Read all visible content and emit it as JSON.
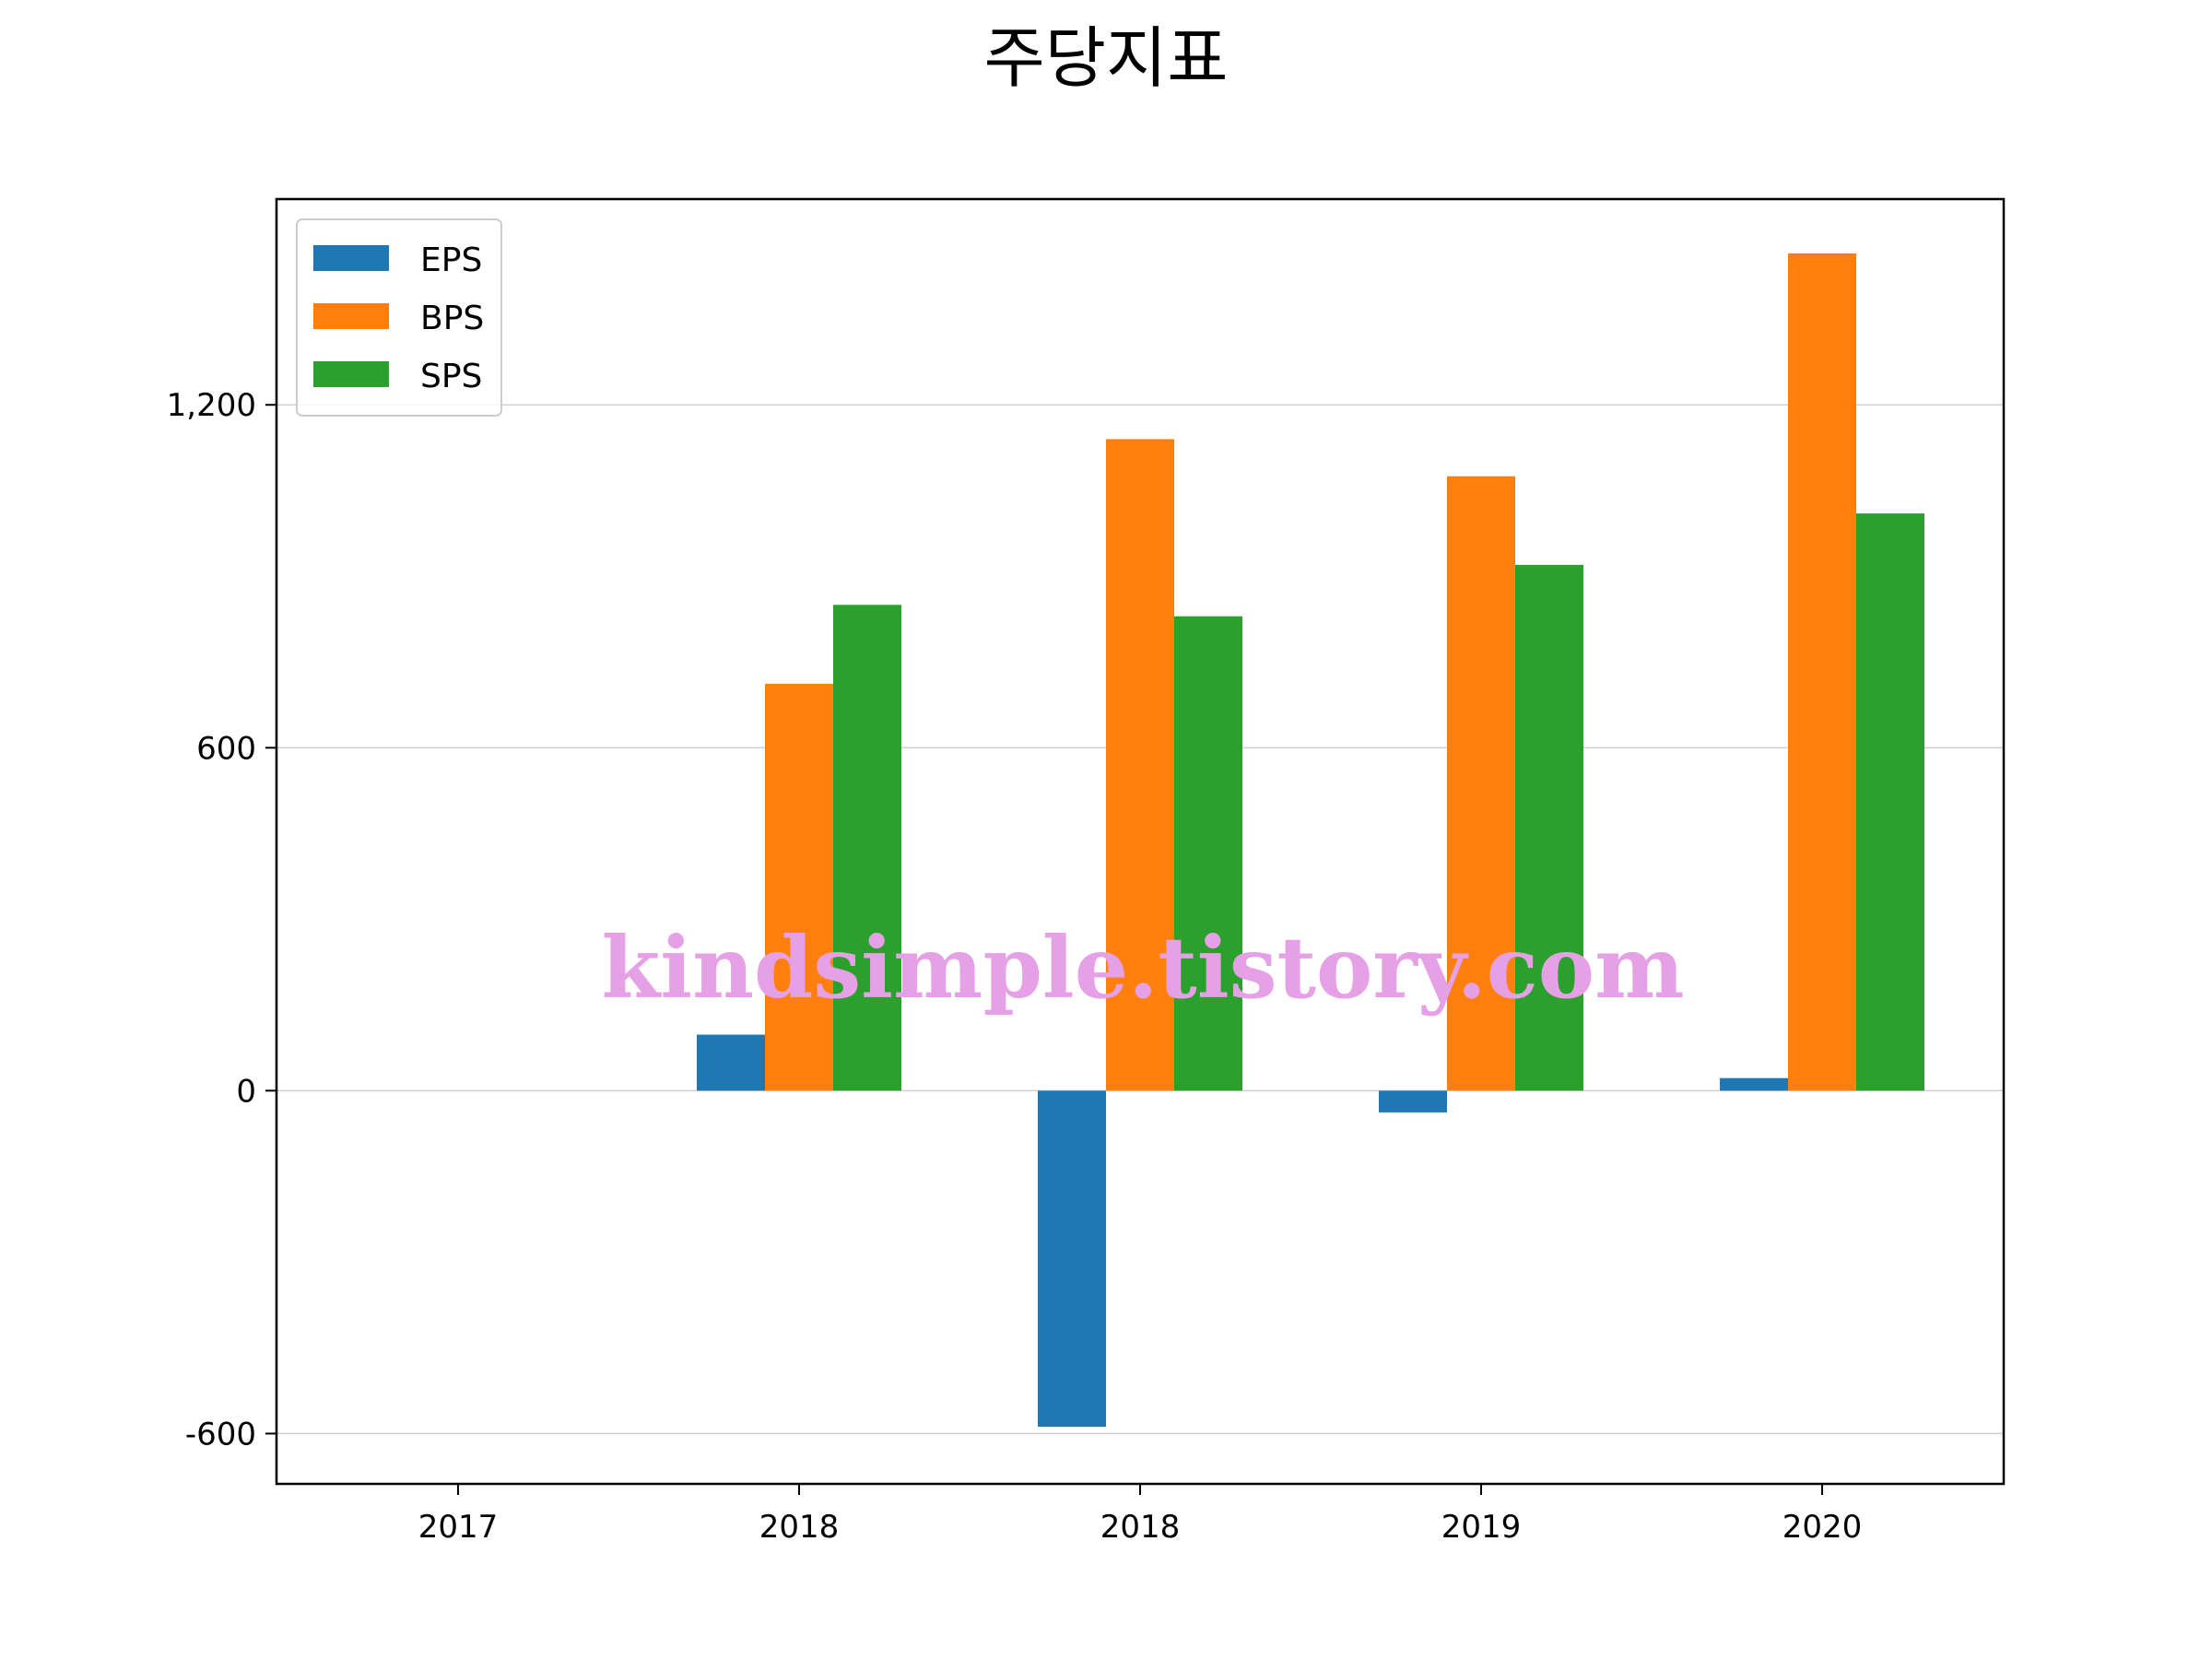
{
  "chart_data": {
    "type": "bar",
    "title": "주당지표",
    "xlabel": "",
    "ylabel": "",
    "categories": [
      "2017",
      "2018",
      "2018",
      "2019",
      "2020"
    ],
    "series": [
      {
        "name": "EPS",
        "color": "#1f77b4",
        "values": [
          0,
          98,
          -588,
          -38,
          22
        ]
      },
      {
        "name": "BPS",
        "color": "#ff7f0e",
        "values": [
          0,
          712,
          1140,
          1075,
          1465
        ]
      },
      {
        "name": "SPS",
        "color": "#2ca02c",
        "values": [
          0,
          850,
          830,
          920,
          1010
        ]
      }
    ],
    "yticks": [
      -600,
      0,
      600,
      1200
    ],
    "ytick_labels": [
      "-600",
      "0",
      "600",
      "1,200"
    ],
    "ylim": [
      -688,
      1560
    ],
    "grid": "horizontal",
    "legend_position": "top-left",
    "watermark": "kindsimple.tistory.com"
  }
}
